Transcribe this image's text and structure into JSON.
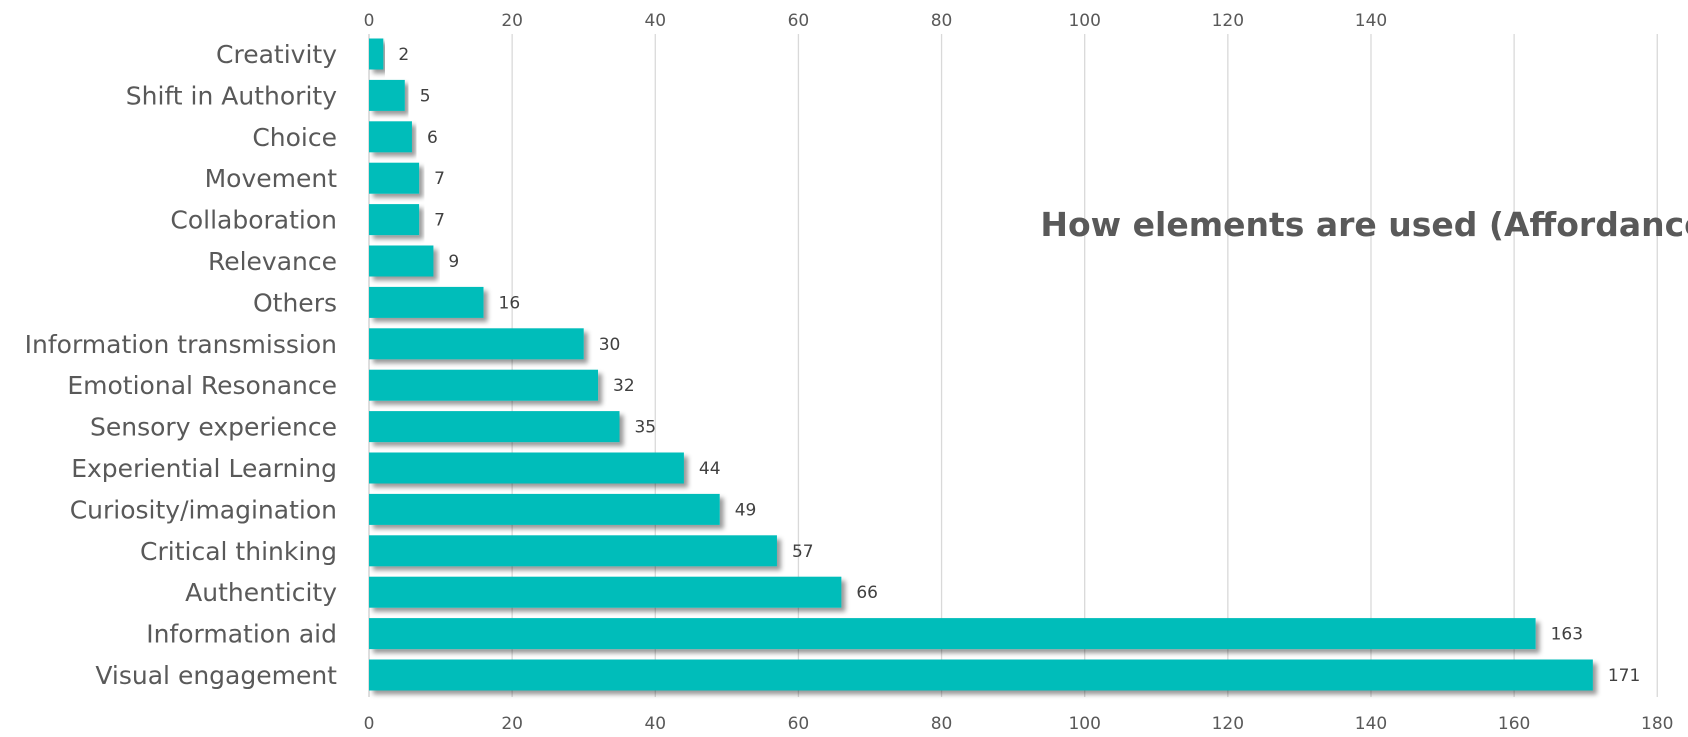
{
  "chart_data": {
    "type": "bar",
    "orientation": "horizontal",
    "title": "How elements are used (Affordance)",
    "categories": [
      "Creativity",
      "Shift in Authority",
      "Choice",
      "Movement",
      "Collaboration",
      "Relevance",
      "Others",
      "Information transmission",
      "Emotional Resonance",
      "Sensory experience",
      "Experiential Learning",
      "Curiosity/imagination",
      "Critical thinking",
      "Authenticity",
      "Information aid",
      "Visual engagement"
    ],
    "values": [
      2,
      5,
      6,
      7,
      7,
      9,
      16,
      30,
      32,
      35,
      44,
      49,
      57,
      66,
      163,
      171
    ],
    "xlim": [
      0,
      180
    ],
    "bottom_ticks": [
      "0",
      "20",
      "40",
      "60",
      "80",
      "100",
      "120",
      "140",
      "160",
      "180"
    ],
    "top_ticks": [
      "0",
      "20",
      "40",
      "60",
      "80",
      "100",
      "120",
      "140"
    ],
    "grid": true,
    "bar_color": "#00BDBA",
    "bar_shadow_color": "#7f7f7f",
    "title_color": "#595959",
    "label_color": "#595959"
  }
}
